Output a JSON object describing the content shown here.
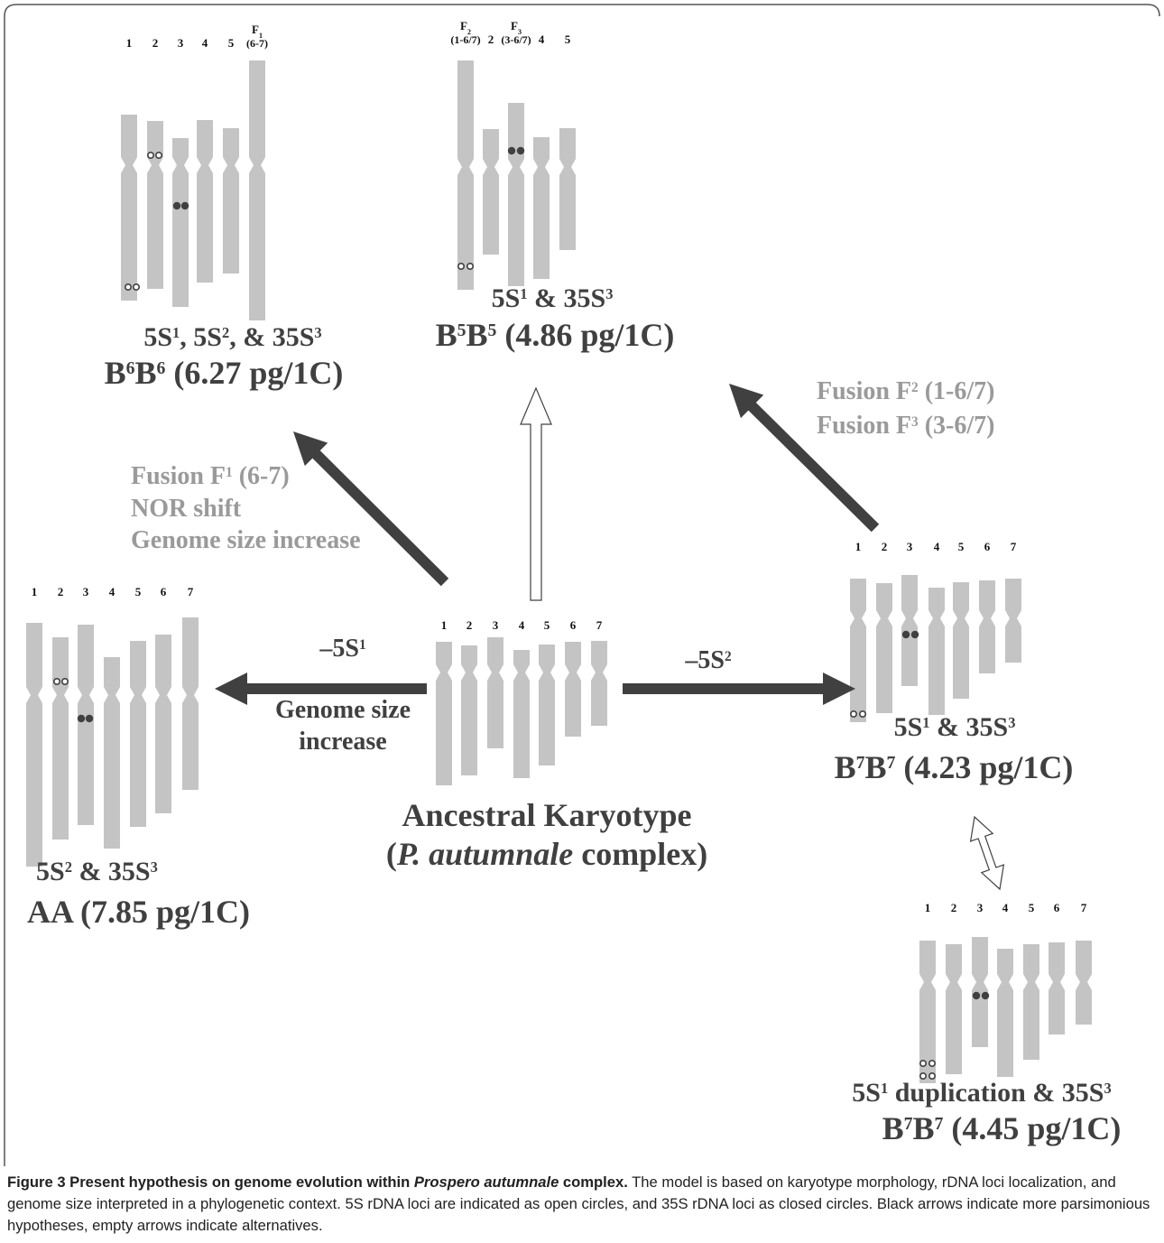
{
  "karyotypes": [
    {
      "chromosomes": [
        {
          "text": "1"
        },
        {
          "text": "2"
        },
        {
          "text": "3"
        },
        {
          "text": "4"
        },
        {
          "text": "5"
        },
        {
          "text": "F",
          "sub": "1",
          "detail": "(6-7)"
        }
      ],
      "caption": [
        [
          {
            "text": "5S"
          },
          {
            "sup": "1"
          },
          {
            "text": ", 5S"
          },
          {
            "sup": "2"
          },
          {
            "text": ", & 35S"
          },
          {
            "sup": "3"
          }
        ],
        [
          {
            "text": "B"
          },
          {
            "sup": "6"
          },
          {
            "text": "B"
          },
          {
            "sup": "6"
          },
          {
            "text": " (6.27 pg/1C)"
          }
        ]
      ]
    },
    {
      "chromosomes": [
        {
          "text": "F",
          "sub": "2",
          "detail": "(1-6/7)"
        },
        {
          "text": "2"
        },
        {
          "text": "F",
          "sub": "3",
          "detail": "(3-6/7)"
        },
        {
          "text": "4"
        },
        {
          "text": "5"
        }
      ],
      "caption": [
        [
          {
            "text": "5S"
          },
          {
            "sup": "1"
          },
          {
            "text": " & 35S"
          },
          {
            "sup": "3"
          }
        ],
        [
          {
            "text": "B"
          },
          {
            "sup": "5"
          },
          {
            "text": "B"
          },
          {
            "sup": "5"
          },
          {
            "text": " (4.86 pg/1C)"
          }
        ]
      ]
    },
    {
      "chromosomes": [
        {
          "text": "1"
        },
        {
          "text": "2"
        },
        {
          "text": "3"
        },
        {
          "text": "4"
        },
        {
          "text": "5"
        },
        {
          "text": "6"
        },
        {
          "text": "7"
        }
      ],
      "caption": [
        [
          {
            "text": "5S"
          },
          {
            "sup": "2"
          },
          {
            "text": " & 35S"
          },
          {
            "sup": "3"
          }
        ],
        [
          {
            "text": "AA (7.85 pg/1C)"
          }
        ]
      ]
    },
    {
      "chromosomes": [
        {
          "text": "1"
        },
        {
          "text": "2"
        },
        {
          "text": "3"
        },
        {
          "text": "4"
        },
        {
          "text": "5"
        },
        {
          "text": "6"
        },
        {
          "text": "7"
        }
      ],
      "caption": [
        [
          {
            "text": "Ancestral Karyotype"
          }
        ],
        [
          {
            "text": "("
          },
          {
            "italic": "P. autumnale"
          },
          {
            "text": " complex)"
          }
        ]
      ]
    },
    {
      "chromosomes": [
        {
          "text": "1"
        },
        {
          "text": "2"
        },
        {
          "text": "3"
        },
        {
          "text": "4"
        },
        {
          "text": "5"
        },
        {
          "text": "6"
        },
        {
          "text": "7"
        }
      ],
      "caption": [
        [
          {
            "text": "5S"
          },
          {
            "sup": "1"
          },
          {
            "text": " & 35S"
          },
          {
            "sup": "3"
          }
        ],
        [
          {
            "text": "B"
          },
          {
            "sup": "7"
          },
          {
            "text": "B"
          },
          {
            "sup": "7"
          },
          {
            "text": " (4.23 pg/1C)"
          }
        ]
      ]
    },
    {
      "chromosomes": [
        {
          "text": "1"
        },
        {
          "text": "2"
        },
        {
          "text": "3"
        },
        {
          "text": "4"
        },
        {
          "text": "5"
        },
        {
          "text": "6"
        },
        {
          "text": "7"
        }
      ],
      "caption": [
        [
          {
            "text": "5S"
          },
          {
            "sup": "1"
          },
          {
            "text": " duplication & 35S"
          },
          {
            "sup": "3"
          }
        ],
        [
          {
            "text": "B"
          },
          {
            "sup": "7"
          },
          {
            "text": "B"
          },
          {
            "sup": "7"
          },
          {
            "text": " (4.45 pg/1C)"
          }
        ]
      ]
    }
  ],
  "annotations": [
    [
      [
        {
          "text": "Fusion F"
        },
        {
          "sup": "1"
        },
        {
          "text": " (6-7)"
        }
      ],
      [
        {
          "text": "NOR shift"
        }
      ],
      [
        {
          "text": "Genome size increase"
        }
      ]
    ],
    [
      [
        {
          "text": "Fusion F"
        },
        {
          "sup": "2"
        },
        {
          "text": " (1-6/7)"
        }
      ],
      [
        {
          "text": "Fusion F"
        },
        {
          "sup": "3"
        },
        {
          "text": " (3-6/7)"
        }
      ]
    ],
    [
      [
        {
          "text": "–5S"
        },
        {
          "sup": "1"
        }
      ],
      [
        {
          "text": "Genome size"
        }
      ],
      [
        {
          "text": "increase"
        }
      ]
    ],
    [
      [
        {
          "text": "–5S"
        },
        {
          "sup": "2"
        }
      ]
    ]
  ],
  "figure_caption": [
    {
      "bold": "Figure 3 Present hypothesis on genome evolution within "
    },
    {
      "bold_italic": "Prospero autumnale"
    },
    {
      "bold": " complex."
    },
    {
      "text": " The model is based on karyotype morphology, rDNA loci localization, and genome size interpreted in a phylogenetic context. 5S rDNA loci are indicated as open circles, and 35S rDNA loci as closed circles. Black arrows indicate more parsimonious hypotheses, empty arrows indicate alternatives."
    }
  ]
}
